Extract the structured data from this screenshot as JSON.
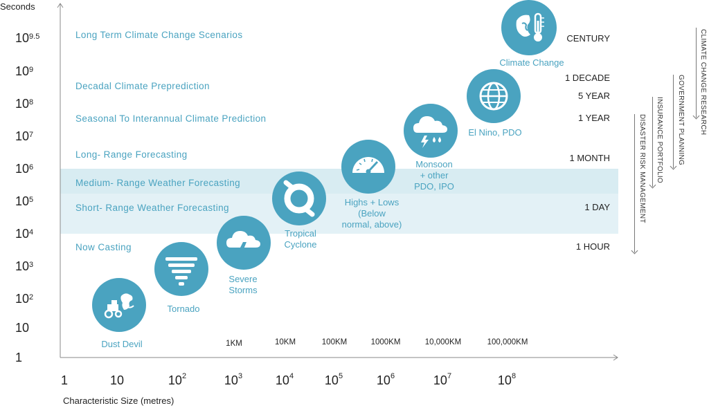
{
  "axes": {
    "y_title": "Seconds",
    "x_title": "Characteristic Size (metres)",
    "y_ticks": [
      {
        "base": "10",
        "exp": "9.5"
      },
      {
        "base": "10",
        "exp": "9"
      },
      {
        "base": "10",
        "exp": "8"
      },
      {
        "base": "10",
        "exp": "7"
      },
      {
        "base": "10",
        "exp": "6"
      },
      {
        "base": "10",
        "exp": "5"
      },
      {
        "base": "10",
        "exp": "4"
      },
      {
        "base": "10",
        "exp": "3"
      },
      {
        "base": "10",
        "exp": "2"
      },
      {
        "base": "10",
        "exp": ""
      },
      {
        "base": "1",
        "exp": ""
      }
    ],
    "x_ticks": [
      {
        "base": "1",
        "exp": ""
      },
      {
        "base": "10",
        "exp": ""
      },
      {
        "base": "10",
        "exp": "2"
      },
      {
        "base": "10",
        "exp": "3"
      },
      {
        "base": "10",
        "exp": "4"
      },
      {
        "base": "10",
        "exp": "5"
      },
      {
        "base": "10",
        "exp": "6"
      },
      {
        "base": "10",
        "exp": "7"
      },
      {
        "base": "10",
        "exp": "8"
      }
    ],
    "distance_labels": [
      "1KM",
      "10KM",
      "100KM",
      "1000KM",
      "10,000KM",
      "100,000KM"
    ]
  },
  "forecast_categories": [
    "Long Term Climate Change Scenarios",
    "Decadal Climate Preprediction",
    "Seasonal To Interannual Climate Prediction",
    "Long- Range Forecasting",
    "Medium- Range Weather Forecasting",
    "Short- Range Weather Forecasting",
    "Now Casting"
  ],
  "time_scales": [
    "CENTURY",
    "1 DECADE",
    "5 YEAR",
    "1 YEAR",
    "1 MONTH",
    "1 DAY",
    "1 HOUR"
  ],
  "phenomena": [
    {
      "label_lines": [
        "Dust Devil"
      ],
      "icon": "dust-devil-icon"
    },
    {
      "label_lines": [
        "Tornado"
      ],
      "icon": "tornado-icon"
    },
    {
      "label_lines": [
        "Severe",
        "Storms"
      ],
      "icon": "storm-cloud-icon"
    },
    {
      "label_lines": [
        "Tropical",
        "Cyclone"
      ],
      "icon": "cyclone-icon"
    },
    {
      "label_lines": [
        "Highs + Lows",
        "(Below",
        "normal, above)"
      ],
      "icon": "pressure-gauge-icon"
    },
    {
      "label_lines": [
        "Monsoon",
        "+ other",
        "PDO, IPO"
      ],
      "icon": "rain-cloud-icon"
    },
    {
      "label_lines": [
        "El Nino, PDO"
      ],
      "icon": "globe-icon"
    },
    {
      "label_lines": [
        "Climate Change"
      ],
      "icon": "climate-thermometer-icon"
    }
  ],
  "sectors": [
    "CLIMATE CHANGE RESEARCH",
    "GOVERNMENT PLANNING",
    "INSURANCE PORTFOLIO",
    "DISASTER RISK MANAGEMENT"
  ],
  "colors": {
    "accent": "#4aa3c0",
    "band": "#d8ecf2"
  }
}
